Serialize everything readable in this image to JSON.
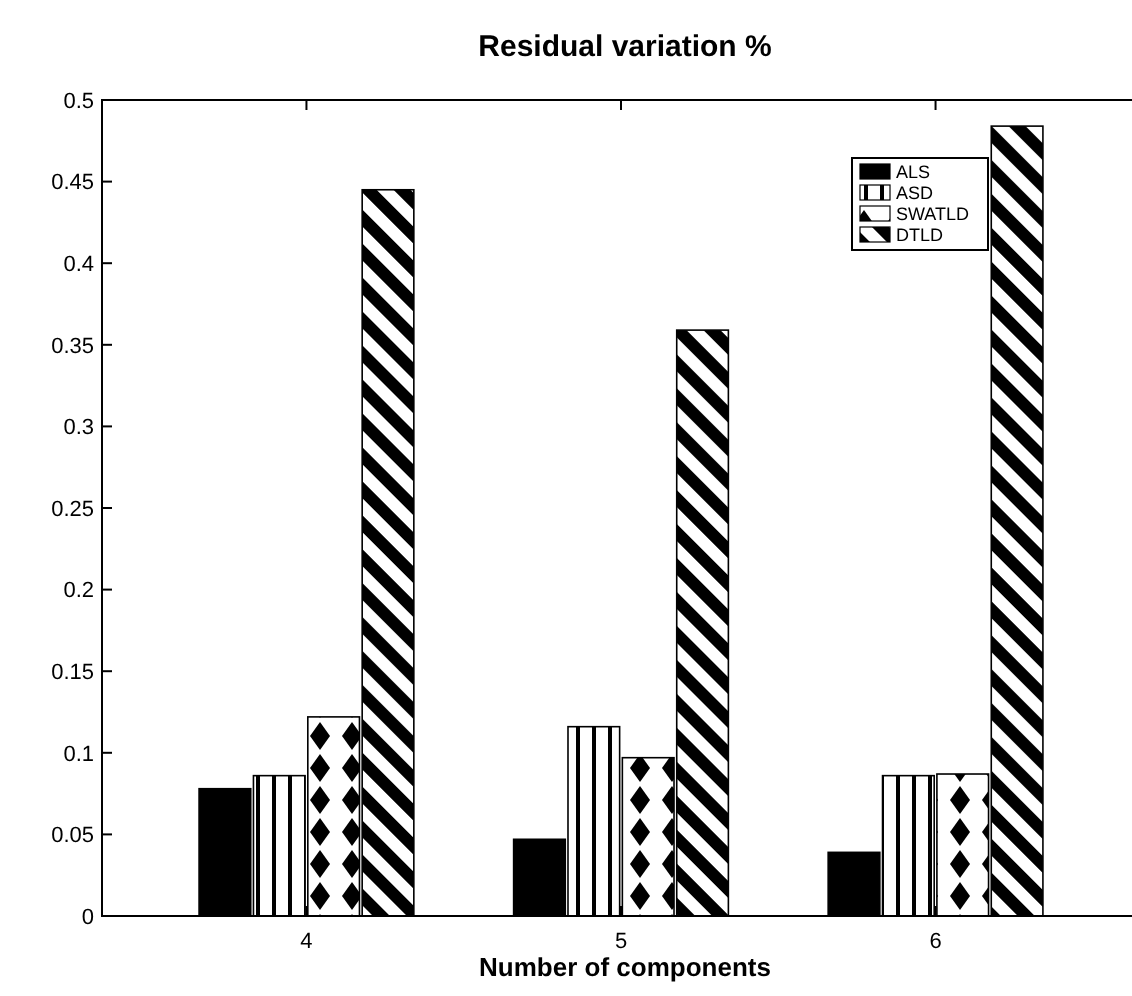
{
  "chart_data": {
    "type": "bar",
    "title": "Residual variation %",
    "xlabel": "Number of components",
    "categories": [
      "4",
      "5",
      "6"
    ],
    "series": [
      {
        "name": "ALS",
        "color": "#000000",
        "values": [
          0.078,
          0.047,
          0.039
        ]
      },
      {
        "name": "ASD",
        "color": "#000000",
        "values": [
          0.086,
          0.116,
          0.086
        ]
      },
      {
        "name": "SWATLD",
        "color": "#000000",
        "values": [
          0.122,
          0.097,
          0.087
        ]
      },
      {
        "name": "DTLD",
        "color": "#000000",
        "values": [
          0.445,
          0.359,
          0.484
        ]
      }
    ],
    "ylim": [
      0,
      0.5
    ],
    "yticks": [
      0,
      0.05,
      0.1,
      0.15,
      0.2,
      0.25,
      0.3,
      0.35,
      0.4,
      0.45,
      0.5
    ],
    "grid": false,
    "legend": "top right"
  }
}
